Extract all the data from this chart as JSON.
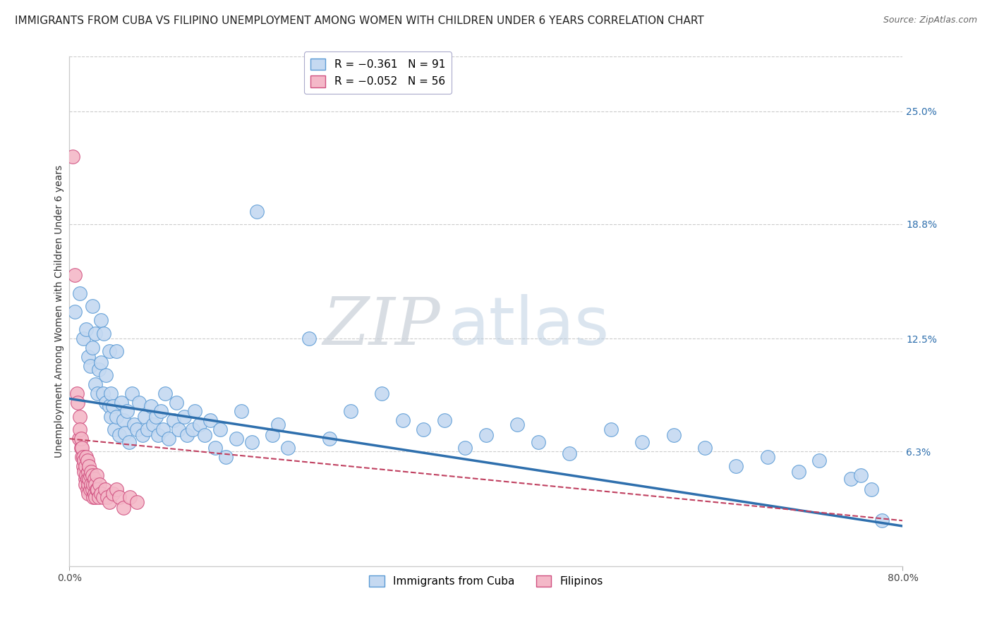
{
  "title": "IMMIGRANTS FROM CUBA VS FILIPINO UNEMPLOYMENT AMONG WOMEN WITH CHILDREN UNDER 6 YEARS CORRELATION CHART",
  "source": "Source: ZipAtlas.com",
  "ylabel": "Unemployment Among Women with Children Under 6 years",
  "ytick_labels": [
    "25.0%",
    "18.8%",
    "12.5%",
    "6.3%"
  ],
  "ytick_values": [
    0.25,
    0.188,
    0.125,
    0.063
  ],
  "xmin": 0.0,
  "xmax": 0.8,
  "ymin": 0.0,
  "ymax": 0.28,
  "legend_r_cuba": "R = −0.361",
  "legend_n_cuba": "N = 91",
  "legend_r_fil": "R = −0.052",
  "legend_n_fil": "N = 56",
  "watermark_zip": "ZIP",
  "watermark_atlas": "atlas",
  "series_cuba": {
    "color": "#c5d9f1",
    "edge_color": "#5b9bd5",
    "line_color": "#2e6fad",
    "x": [
      0.005,
      0.01,
      0.013,
      0.016,
      0.018,
      0.02,
      0.022,
      0.022,
      0.025,
      0.025,
      0.027,
      0.028,
      0.03,
      0.03,
      0.032,
      0.033,
      0.035,
      0.035,
      0.038,
      0.038,
      0.04,
      0.04,
      0.042,
      0.043,
      0.045,
      0.045,
      0.048,
      0.05,
      0.052,
      0.053,
      0.055,
      0.057,
      0.06,
      0.062,
      0.065,
      0.067,
      0.07,
      0.072,
      0.075,
      0.078,
      0.08,
      0.083,
      0.085,
      0.088,
      0.09,
      0.092,
      0.095,
      0.1,
      0.103,
      0.105,
      0.11,
      0.113,
      0.118,
      0.12,
      0.125,
      0.13,
      0.135,
      0.14,
      0.145,
      0.15,
      0.16,
      0.165,
      0.175,
      0.18,
      0.195,
      0.2,
      0.21,
      0.23,
      0.25,
      0.27,
      0.3,
      0.32,
      0.34,
      0.36,
      0.38,
      0.4,
      0.43,
      0.45,
      0.48,
      0.52,
      0.55,
      0.58,
      0.61,
      0.64,
      0.67,
      0.7,
      0.72,
      0.75,
      0.76,
      0.77,
      0.78
    ],
    "y": [
      0.14,
      0.15,
      0.125,
      0.13,
      0.115,
      0.11,
      0.143,
      0.12,
      0.1,
      0.128,
      0.095,
      0.108,
      0.112,
      0.135,
      0.095,
      0.128,
      0.09,
      0.105,
      0.088,
      0.118,
      0.082,
      0.095,
      0.088,
      0.075,
      0.082,
      0.118,
      0.072,
      0.09,
      0.08,
      0.073,
      0.085,
      0.068,
      0.095,
      0.078,
      0.075,
      0.09,
      0.072,
      0.082,
      0.075,
      0.088,
      0.078,
      0.082,
      0.072,
      0.085,
      0.075,
      0.095,
      0.07,
      0.08,
      0.09,
      0.075,
      0.082,
      0.072,
      0.075,
      0.085,
      0.078,
      0.072,
      0.08,
      0.065,
      0.075,
      0.06,
      0.07,
      0.085,
      0.068,
      0.195,
      0.072,
      0.078,
      0.065,
      0.125,
      0.07,
      0.085,
      0.095,
      0.08,
      0.075,
      0.08,
      0.065,
      0.072,
      0.078,
      0.068,
      0.062,
      0.075,
      0.068,
      0.072,
      0.065,
      0.055,
      0.06,
      0.052,
      0.058,
      0.048,
      0.05,
      0.042,
      0.025
    ]
  },
  "series_filipino": {
    "color": "#f4b8c8",
    "edge_color": "#d05080",
    "line_color": "#c04060",
    "x": [
      0.003,
      0.005,
      0.007,
      0.008,
      0.009,
      0.01,
      0.01,
      0.011,
      0.011,
      0.012,
      0.012,
      0.013,
      0.013,
      0.014,
      0.014,
      0.015,
      0.015,
      0.015,
      0.016,
      0.016,
      0.017,
      0.017,
      0.017,
      0.018,
      0.018,
      0.018,
      0.019,
      0.019,
      0.02,
      0.02,
      0.021,
      0.021,
      0.022,
      0.022,
      0.023,
      0.023,
      0.024,
      0.024,
      0.025,
      0.025,
      0.026,
      0.026,
      0.027,
      0.028,
      0.029,
      0.03,
      0.032,
      0.034,
      0.036,
      0.038,
      0.042,
      0.045,
      0.048,
      0.052,
      0.058,
      0.065
    ],
    "y": [
      0.225,
      0.16,
      0.095,
      0.09,
      0.07,
      0.082,
      0.075,
      0.065,
      0.07,
      0.06,
      0.065,
      0.055,
      0.06,
      0.052,
      0.058,
      0.048,
      0.055,
      0.045,
      0.05,
      0.06,
      0.042,
      0.048,
      0.058,
      0.045,
      0.052,
      0.04,
      0.048,
      0.055,
      0.042,
      0.05,
      0.045,
      0.052,
      0.042,
      0.05,
      0.038,
      0.045,
      0.048,
      0.04,
      0.045,
      0.038,
      0.042,
      0.05,
      0.042,
      0.038,
      0.045,
      0.04,
      0.038,
      0.042,
      0.038,
      0.035,
      0.04,
      0.042,
      0.038,
      0.032,
      0.038,
      0.035
    ]
  },
  "background_color": "#ffffff",
  "grid_color": "#cccccc",
  "title_fontsize": 11,
  "tick_fontsize": 10,
  "label_fontsize": 10
}
